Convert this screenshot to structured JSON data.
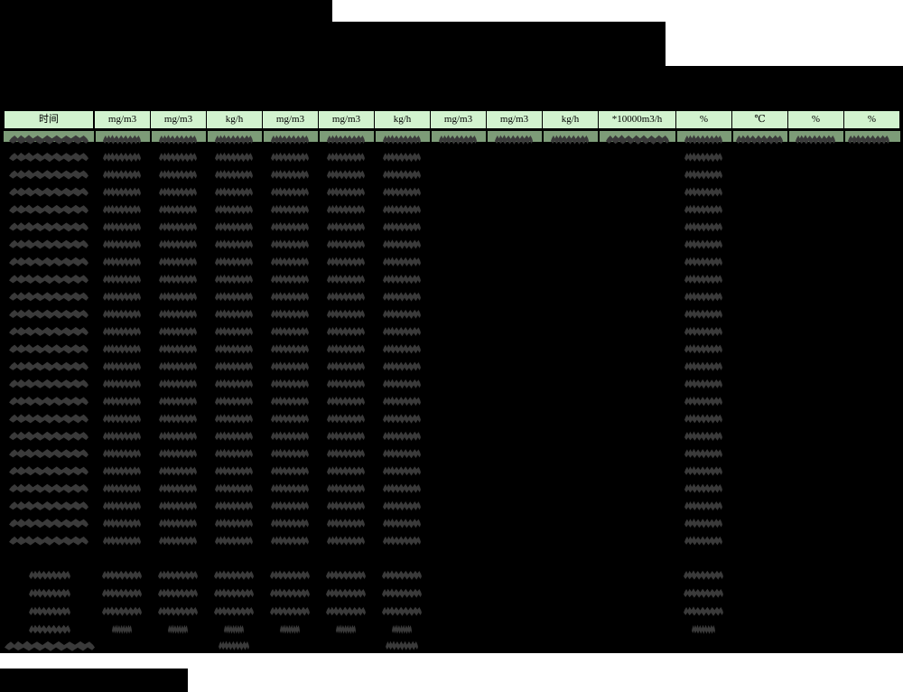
{
  "colors": {
    "page_black": "#000000",
    "page_white": "#ffffff",
    "header_green": "#d2f3cf",
    "row_highlight_green": "#7d9c78",
    "redaction_gray": "#3a3a3a",
    "border_black": "#000000"
  },
  "table": {
    "header_labels": [
      "时间",
      "mg/m3",
      "mg/m3",
      "kg/h",
      "mg/m3",
      "mg/m3",
      "kg/h",
      "mg/m3",
      "mg/m3",
      "kg/h",
      "*10000m3/h",
      "%",
      "℃",
      "%",
      "%"
    ],
    "main_row_count": 24,
    "summary_row_count": 4,
    "footer_row_count": 1
  }
}
